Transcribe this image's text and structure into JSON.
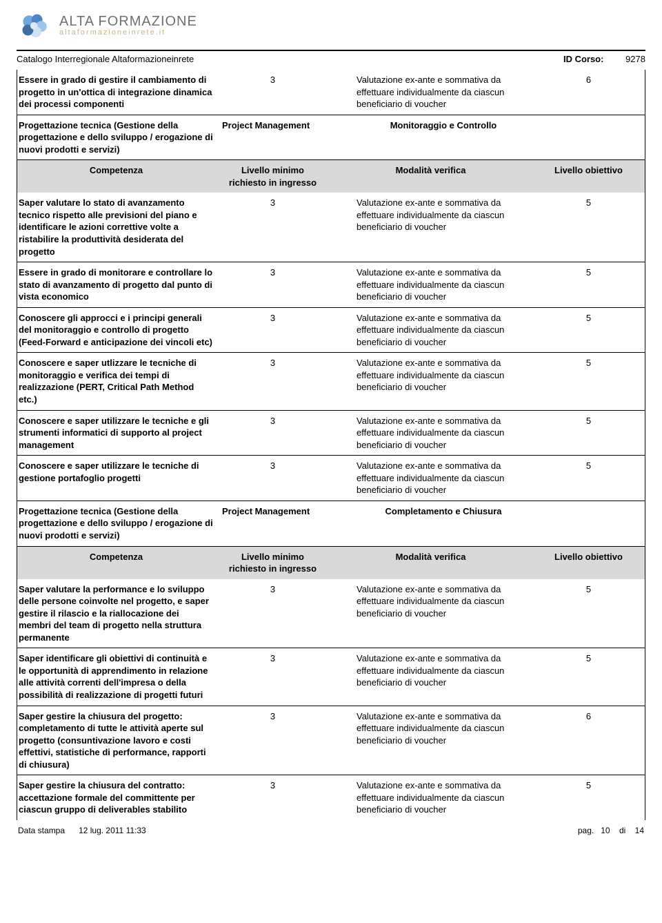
{
  "brand": {
    "title": "ALTA FORMAZIONE",
    "subtitle": "altaformazioneinrete.it"
  },
  "catalogName": "Catalogo Interregionale Altaformazioneinrete",
  "idCorsoLabel": "ID Corso:",
  "idCorsoValue": "9278",
  "verificationText": "Valutazione ex-ante e sommativa da effettuare individualmente da ciascun beneficiario di voucher",
  "tableHeader": {
    "competenza": "Competenza",
    "livelloMin": "Livello minimo richiesto in ingresso",
    "modalita": "Modalità verifica",
    "livelloObj": "Livello obiettivo"
  },
  "firstRow": {
    "comp": "Essere in grado di gestire il cambiamento di progetto in un'ottica di integrazione dinamica dei processi componenti",
    "min": "3",
    "obj": "6"
  },
  "section1": {
    "area": "Progettazione tecnica (Gestione della progettazione e dello sviluppo / erogazione di nuovi prodotti e servizi)",
    "cat": "Project Management",
    "sub": "Monitoraggio e Controllo",
    "rows": [
      {
        "comp": "Saper valutare lo stato di avanzamento tecnico rispetto alle previsioni del piano e identificare le azioni correttive volte a ristabilire la produttività desiderata del progetto",
        "min": "3",
        "obj": "5"
      },
      {
        "comp": "Essere in grado di monitorare e controllare lo stato di avanzamento di progetto dal punto di vista economico",
        "min": "3",
        "obj": "5"
      },
      {
        "comp": "Conoscere gli approcci e i principi generali del monitoraggio e controllo di progetto (Feed-Forward e anticipazione dei vincoli etc)",
        "min": "3",
        "obj": "5"
      },
      {
        "comp": "Conoscere e saper utlizzare le tecniche di monitoraggio e verifica dei tempi di realizzazione (PERT, Critical Path Method etc.)",
        "min": "3",
        "obj": "5"
      },
      {
        "comp": "Conoscere e saper utilizzare le tecniche e gli strumenti informatici di supporto al project management",
        "min": "3",
        "obj": "5"
      },
      {
        "comp": "Conoscere e saper utilizzare le tecniche di gestione portafoglio progetti",
        "min": "3",
        "obj": "5"
      }
    ]
  },
  "section2": {
    "area": "Progettazione tecnica (Gestione della progettazione e dello sviluppo / erogazione di nuovi prodotti e servizi)",
    "cat": "Project Management",
    "sub": "Completamento e Chiusura",
    "rows": [
      {
        "comp": "Saper valutare la performance e lo sviluppo delle persone coinvolte nel progetto, e saper gestire il rilascio e la riallocazione dei membri del team di progetto nella struttura permanente",
        "min": "3",
        "obj": "5"
      },
      {
        "comp": "Saper identificare gli obiettivi di continuità e le opportunità di apprendimento in relazione alle attività correnti dell'impresa o della possibilità di realizzazione di progetti futuri",
        "min": "3",
        "obj": "5"
      },
      {
        "comp": "Saper gestire la chiusura del progetto: completamento di tutte le attività aperte sul progetto (consuntivazione lavoro e costi effettivi, statistiche di performance, rapporti di chiusura)",
        "min": "3",
        "obj": "6"
      },
      {
        "comp": "Saper gestire la chiusura del contratto: accettazione formale del committente per ciascun gruppo di deliverables stabilito",
        "min": "3",
        "obj": "5"
      }
    ]
  },
  "footer": {
    "dataStampaLabel": "Data stampa",
    "dataStampaValue": "12 lug. 2011 11:33",
    "pagPrefix": "pag.",
    "pagCurrent": "10",
    "pagSep": "di",
    "pagTotal": "14"
  },
  "logo": {
    "colors": [
      "#6fa8dc",
      "#4a86c7",
      "#9fc5e8",
      "#cfe2f3",
      "#3d6fa0"
    ]
  }
}
